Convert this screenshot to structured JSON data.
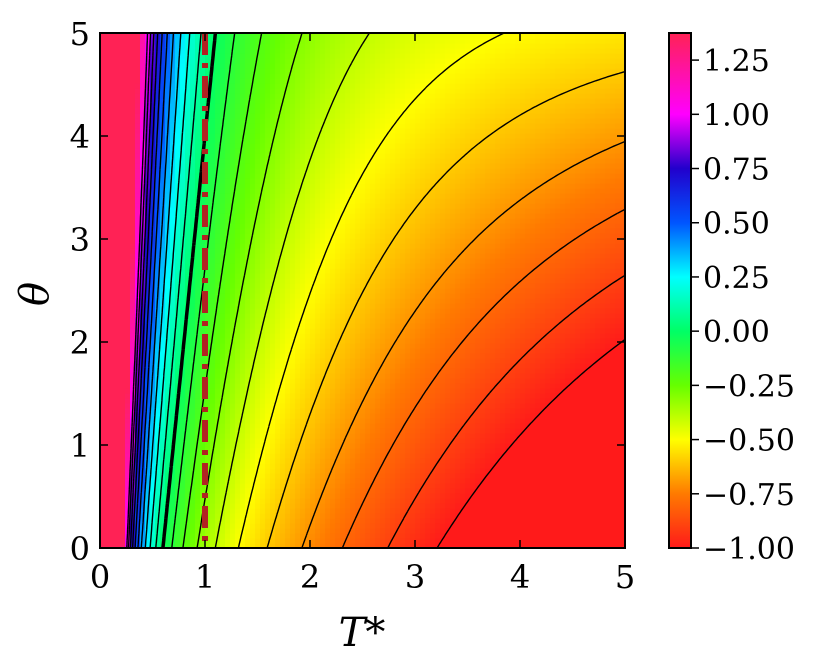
{
  "chart_data": {
    "type": "heatmap",
    "title": "",
    "xlabel": "T*",
    "ylabel": "θ",
    "xlim": [
      0,
      5
    ],
    "ylim": [
      0,
      5
    ],
    "x_ticks": [
      "0",
      "1",
      "2",
      "3",
      "4",
      "5"
    ],
    "y_ticks": [
      "0",
      "1",
      "2",
      "3",
      "4",
      "5"
    ],
    "grid": false,
    "colorbar": {
      "position": "right",
      "range": [
        -1.0,
        1.375
      ],
      "ticks": [
        "1.25",
        "1.00",
        "0.75",
        "0.50",
        "0.25",
        "0.00",
        "−0.25",
        "−0.50",
        "−0.75",
        "−1.00"
      ],
      "tick_values": [
        1.25,
        1.0,
        0.75,
        0.5,
        0.25,
        0.0,
        -0.25,
        -0.5,
        -0.75,
        -1.0
      ],
      "colormap": [
        {
          "v": -1.0,
          "color": "#ff1a1a"
        },
        {
          "v": -0.75,
          "color": "#ff7a00"
        },
        {
          "v": -0.5,
          "color": "#ffff00"
        },
        {
          "v": -0.25,
          "color": "#66ff00"
        },
        {
          "v": 0.0,
          "color": "#00ff66"
        },
        {
          "v": 0.25,
          "color": "#00ffff"
        },
        {
          "v": 0.5,
          "color": "#0055ff"
        },
        {
          "v": 0.75,
          "color": "#2200cc"
        },
        {
          "v": 1.0,
          "color": "#ff00ff"
        },
        {
          "v": 1.375,
          "color": "#ff2255"
        }
      ]
    },
    "zero_contour_T_at_theta": [
      {
        "theta": 0,
        "T": 0.6
      },
      {
        "theta": 5,
        "T": 1.1
      }
    ],
    "reference_line": {
      "x": 1,
      "style": "dash-dot",
      "color": "#b22222"
    },
    "contour_levels": [
      -1.0,
      -0.9,
      -0.8,
      -0.7,
      -0.6,
      -0.5,
      -0.4,
      -0.3,
      -0.2,
      -0.1,
      0.1,
      0.2,
      0.3,
      0.4,
      0.5,
      0.6,
      0.7,
      0.8,
      0.9,
      1.0
    ]
  }
}
